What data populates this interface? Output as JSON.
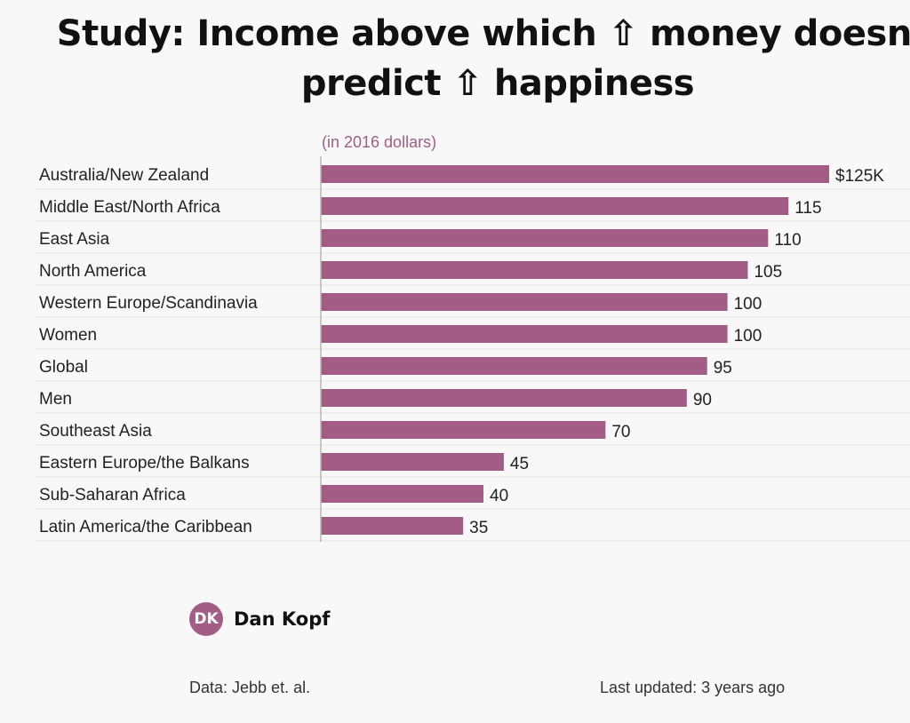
{
  "title": "Study: Income above which ⇧ money doesn't predict ⇧ happiness",
  "author": {
    "initials": "DK",
    "name": "Dan Kopf"
  },
  "footer": {
    "source": "Data: Jebb et. al.",
    "updated": "Last updated: 3 years ago"
  },
  "colors": {
    "bar": "#a25c86",
    "unit_text": "#a25c86",
    "grid": "#e4e4e4",
    "axis": "#b5b5b5",
    "background": "#f8f8f8"
  },
  "chart_data": {
    "type": "bar",
    "orientation": "horizontal",
    "subtitle": "(in 2016 dollars)",
    "categories": [
      "Australia/New Zealand",
      "Middle East/North Africa",
      "East Asia",
      "North America",
      "Western Europe/Scandinavia",
      "Women",
      "Global",
      "Men",
      "Southeast Asia",
      "Eastern Europe/the Balkans",
      "Sub-Saharan Africa",
      "Latin America/the Caribbean"
    ],
    "values": [
      125,
      115,
      110,
      105,
      100,
      100,
      95,
      90,
      70,
      45,
      40,
      35
    ],
    "value_labels": [
      "$125K",
      "115",
      "110",
      "105",
      "100",
      "100",
      "95",
      "90",
      "70",
      "45",
      "40",
      "35"
    ],
    "xlim": [
      0,
      125
    ],
    "grid": true
  }
}
